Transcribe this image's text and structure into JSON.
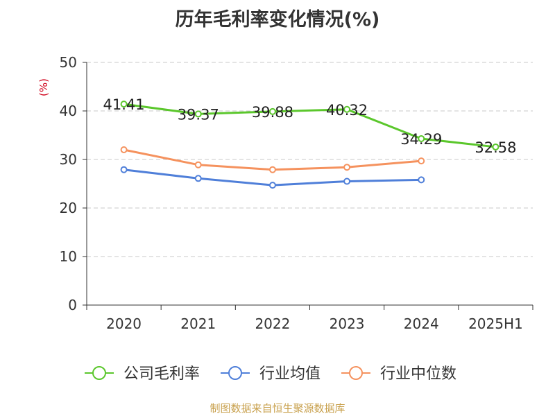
{
  "chart_data": {
    "type": "line",
    "title": "历年毛利率变化情况(%)",
    "ylabel": "(%)",
    "xlabel": "",
    "categories": [
      "2020",
      "2021",
      "2022",
      "2023",
      "2024",
      "2025H1"
    ],
    "ylim": [
      0,
      50
    ],
    "yticks": [
      0,
      10,
      20,
      30,
      40,
      50
    ],
    "grid": true,
    "legend_position": "bottom",
    "series": [
      {
        "name": "公司毛利率",
        "color": "#5bc72c",
        "values": [
          41.41,
          39.37,
          39.88,
          40.32,
          34.29,
          32.58
        ],
        "labels": [
          "41.41",
          "39.37",
          "39.88",
          "40.32",
          "34.29",
          "32.58"
        ]
      },
      {
        "name": "行业均值",
        "color": "#4f7fd9",
        "values": [
          27.9,
          26.1,
          24.7,
          25.5,
          25.8,
          null
        ]
      },
      {
        "name": "行业中位数",
        "color": "#f5925e",
        "values": [
          32.0,
          28.9,
          27.9,
          28.4,
          29.7,
          null
        ]
      }
    ]
  },
  "footer": "制图数据来自恒生聚源数据库"
}
